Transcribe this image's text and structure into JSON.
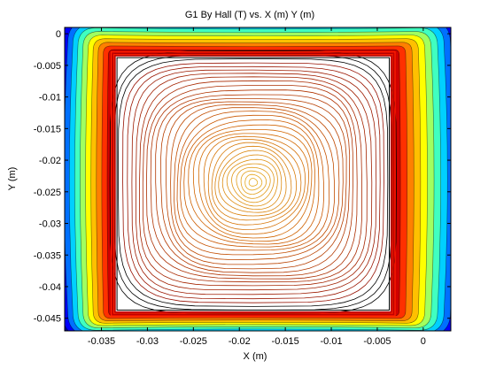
{
  "chart_data": {
    "type": "contour",
    "title": "G1 By Hall (T) vs. X (m) Y (m)",
    "xlabel": "X (m)",
    "ylabel": "Y (m)",
    "xlim": [
      -0.039,
      0.003
    ],
    "ylim": [
      -0.047,
      0.001
    ],
    "x_ticks": [
      -0.035,
      -0.03,
      -0.025,
      -0.02,
      -0.015,
      -0.01,
      -0.005,
      0
    ],
    "x_tick_labels": [
      "-0.035",
      "-0.03",
      "-0.025",
      "-0.02",
      "-0.015",
      "-0.01",
      "-0.005",
      "0"
    ],
    "y_ticks": [
      0,
      -0.005,
      -0.01,
      -0.015,
      -0.02,
      -0.025,
      -0.03,
      -0.035,
      -0.04,
      -0.045
    ],
    "y_tick_labels": [
      "0",
      "-0.005",
      "-0.01",
      "-0.015",
      "-0.02",
      "-0.025",
      "-0.03",
      "-0.035",
      "-0.04",
      "-0.045"
    ],
    "center": {
      "x": -0.0185,
      "y": -0.0235
    },
    "inner_region": {
      "x": [
        -0.0335,
        -0.0035
      ],
      "y": [
        -0.044,
        -0.0035
      ]
    },
    "colormap": [
      "#00008f",
      "#0000ff",
      "#0070ff",
      "#00d0ff",
      "#40ffc0",
      "#a0ff60",
      "#ffff00",
      "#ffc000",
      "#ff8000",
      "#ff3000",
      "#d00000",
      "#900000"
    ],
    "grid": false,
    "colors": {
      "inner_low": "#8b0000",
      "inner_high": "#e8b020",
      "frame": "#000000"
    }
  }
}
